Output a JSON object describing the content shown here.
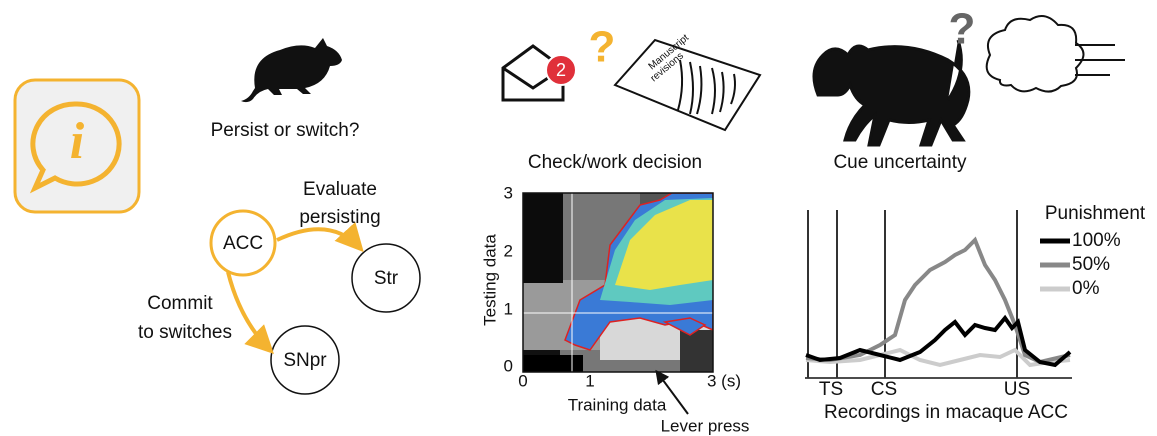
{
  "rodent": {
    "question": "Persist or switch?",
    "nodes": [
      "ACC",
      "Str",
      "SNpr"
    ],
    "edges": [
      [
        "Evaluate",
        "persisting"
      ],
      [
        "Commit",
        "to switches"
      ]
    ]
  },
  "middle": {
    "badge": "2",
    "question_mark": "?",
    "paper_text": [
      "Manuscript",
      "revisions"
    ],
    "title": "Check/work decision",
    "heatmap": {
      "y_axis_label": "Testing data",
      "x_axis_label": "Training data",
      "yticks": [
        "3",
        "2",
        "1",
        "0"
      ],
      "xticks": [
        "0",
        "1",
        "3 (s)"
      ],
      "annotation": "Lever press"
    }
  },
  "right": {
    "question_mark": "?",
    "title": "Cue uncertainty",
    "events": [
      "TS",
      "CS",
      "US"
    ],
    "caption": "Recordings in macaque ACC",
    "legend": {
      "title": "Punishment",
      "entries": [
        "100%",
        "50%",
        "0%"
      ]
    }
  }
}
